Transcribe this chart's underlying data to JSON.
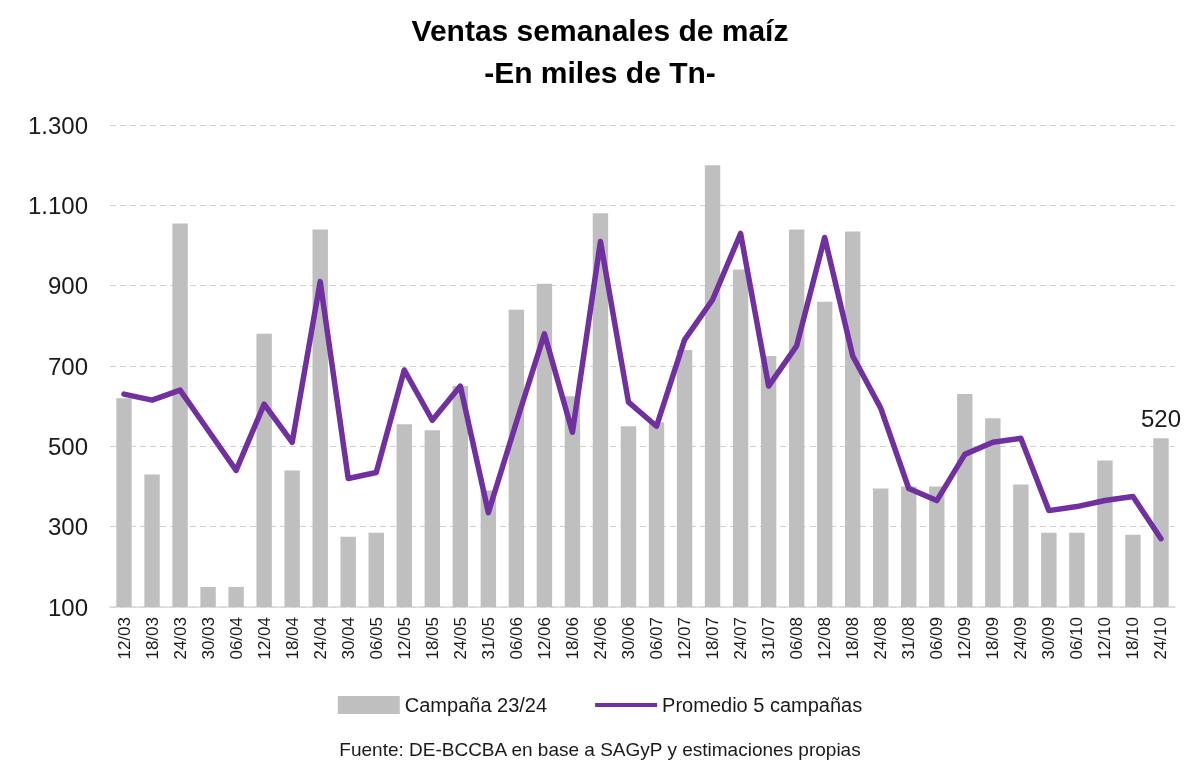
{
  "chart_data": {
    "type": "bar",
    "title": "Ventas semanales de maíz",
    "subtitle": "-En miles de Tn-",
    "categories": [
      "12/03",
      "18/03",
      "24/03",
      "30/03",
      "06/04",
      "12/04",
      "18/04",
      "24/04",
      "30/04",
      "06/05",
      "12/05",
      "18/05",
      "24/05",
      "31/05",
      "06/06",
      "12/06",
      "18/06",
      "24/06",
      "30/06",
      "06/07",
      "12/07",
      "18/07",
      "24/07",
      "31/07",
      "06/08",
      "12/08",
      "18/08",
      "24/08",
      "31/08",
      "06/09",
      "12/09",
      "18/09",
      "24/09",
      "30/09",
      "06/10",
      "12/10",
      "18/10",
      "24/10"
    ],
    "series": [
      {
        "name": "Campaña 23/24",
        "color": "#bfbfbf",
        "values": [
          620,
          430,
          1055,
          150,
          150,
          780,
          440,
          1040,
          275,
          285,
          555,
          540,
          650,
          390,
          840,
          905,
          625,
          1080,
          550,
          560,
          740,
          1200,
          940,
          725,
          1040,
          860,
          1035,
          395,
          400,
          400,
          630,
          570,
          405,
          285,
          285,
          465,
          280,
          520
        ],
        "value_labels": [
          null,
          null,
          null,
          null,
          null,
          null,
          null,
          null,
          null,
          null,
          null,
          null,
          null,
          null,
          null,
          null,
          null,
          null,
          null,
          null,
          null,
          null,
          null,
          null,
          null,
          null,
          null,
          null,
          null,
          null,
          null,
          null,
          null,
          null,
          null,
          null,
          null,
          "520"
        ]
      },
      {
        "name": "Promedio 5 campañas",
        "type": "line",
        "color": "#7030a0",
        "values": [
          630,
          615,
          640,
          540,
          440,
          605,
          510,
          910,
          420,
          435,
          690,
          565,
          650,
          335,
          560,
          780,
          535,
          1010,
          610,
          550,
          765,
          865,
          1030,
          650,
          750,
          1020,
          725,
          595,
          395,
          365,
          480,
          510,
          520,
          340,
          350,
          365,
          375,
          270
        ]
      }
    ],
    "ylim": [
      100,
      1300
    ],
    "yticks": [
      100,
      300,
      500,
      700,
      900,
      {
        "value": 1100,
        "label": "1.100"
      },
      {
        "value": 1300,
        "label": "1.300"
      }
    ],
    "grid": "y",
    "legend": "bottom",
    "marker": "none",
    "line_style": "solid",
    "annotations": [
      "Fuente: DE-BCCBA en base a SAGyP y estimaciones propias"
    ]
  }
}
